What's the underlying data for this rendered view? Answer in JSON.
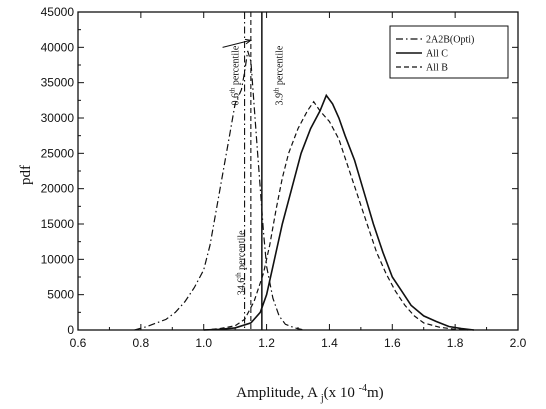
{
  "chart_data": {
    "type": "line",
    "title": "",
    "xlabel": "Amplitude, A",
    "xlabel_sub": "j",
    "xlabel_unit_pre": "(x 10",
    "xlabel_unit_exp": "-4",
    "xlabel_unit_post": "m)",
    "ylabel": "pdf",
    "xlim": [
      0.6,
      2.0
    ],
    "ylim": [
      0,
      45000
    ],
    "xticks": [
      "0.6",
      "0.8",
      "1.0",
      "1.2",
      "1.4",
      "1.6",
      "1.8",
      "2.0"
    ],
    "yticks": [
      "0",
      "5000",
      "10000",
      "15000",
      "20000",
      "25000",
      "30000",
      "35000",
      "40000",
      "45000"
    ],
    "grid": false,
    "legend_position": "top-right",
    "series": [
      {
        "name": "2A2B(Opti)",
        "dash": "dashdot",
        "points": [
          [
            0.78,
            0
          ],
          [
            0.82,
            500
          ],
          [
            0.85,
            1000
          ],
          [
            0.88,
            1500
          ],
          [
            0.91,
            2500
          ],
          [
            0.94,
            4000
          ],
          [
            0.97,
            6000
          ],
          [
            1.0,
            8500
          ],
          [
            1.02,
            12000
          ],
          [
            1.04,
            17000
          ],
          [
            1.06,
            22000
          ],
          [
            1.08,
            27000
          ],
          [
            1.1,
            32000
          ],
          [
            1.12,
            34000
          ],
          [
            1.13,
            36500
          ],
          [
            1.14,
            39500
          ],
          [
            1.15,
            38000
          ],
          [
            1.16,
            32000
          ],
          [
            1.17,
            26000
          ],
          [
            1.18,
            20000
          ],
          [
            1.19,
            14000
          ],
          [
            1.2,
            9000
          ],
          [
            1.22,
            4500
          ],
          [
            1.24,
            2000
          ],
          [
            1.26,
            800
          ],
          [
            1.29,
            300
          ],
          [
            1.32,
            0
          ]
        ]
      },
      {
        "name": "All C",
        "dash": "solid",
        "points": [
          [
            1.0,
            0
          ],
          [
            1.05,
            100
          ],
          [
            1.1,
            300
          ],
          [
            1.15,
            1000
          ],
          [
            1.18,
            2500
          ],
          [
            1.2,
            5000
          ],
          [
            1.22,
            9000
          ],
          [
            1.25,
            15000
          ],
          [
            1.28,
            20000
          ],
          [
            1.31,
            25000
          ],
          [
            1.34,
            28500
          ],
          [
            1.37,
            31000
          ],
          [
            1.39,
            33200
          ],
          [
            1.41,
            32000
          ],
          [
            1.43,
            30000
          ],
          [
            1.45,
            27500
          ],
          [
            1.48,
            24000
          ],
          [
            1.51,
            19500
          ],
          [
            1.54,
            15000
          ],
          [
            1.57,
            11000
          ],
          [
            1.6,
            7500
          ],
          [
            1.63,
            5500
          ],
          [
            1.66,
            3500
          ],
          [
            1.7,
            2000
          ],
          [
            1.74,
            1200
          ],
          [
            1.78,
            500
          ],
          [
            1.82,
            200
          ],
          [
            1.86,
            0
          ]
        ]
      },
      {
        "name": "All B",
        "dash": "dashed",
        "points": [
          [
            1.0,
            0
          ],
          [
            1.05,
            200
          ],
          [
            1.1,
            600
          ],
          [
            1.13,
            1500
          ],
          [
            1.16,
            4000
          ],
          [
            1.19,
            8000
          ],
          [
            1.21,
            12000
          ],
          [
            1.23,
            17000
          ],
          [
            1.25,
            21500
          ],
          [
            1.27,
            25000
          ],
          [
            1.3,
            28500
          ],
          [
            1.33,
            31000
          ],
          [
            1.35,
            32300
          ],
          [
            1.37,
            31000
          ],
          [
            1.4,
            29500
          ],
          [
            1.43,
            27000
          ],
          [
            1.46,
            23000
          ],
          [
            1.49,
            19000
          ],
          [
            1.52,
            15000
          ],
          [
            1.55,
            11000
          ],
          [
            1.58,
            8000
          ],
          [
            1.61,
            5500
          ],
          [
            1.64,
            3500
          ],
          [
            1.67,
            2000
          ],
          [
            1.7,
            1000
          ],
          [
            1.75,
            400
          ],
          [
            1.8,
            100
          ],
          [
            1.84,
            0
          ]
        ]
      }
    ],
    "vlines": [
      {
        "x": 1.13,
        "dash": "dashdot"
      },
      {
        "x": 1.15,
        "dash": "dashed"
      },
      {
        "x": 1.185,
        "dash": "solid"
      }
    ],
    "annotations": [
      {
        "label": "0.6",
        "sup": "th",
        "rest": " percentile",
        "x": 1.11,
        "y": 36000
      },
      {
        "label": "3.9",
        "sup": "th",
        "rest": " percentile",
        "x": 1.25,
        "y": 36000
      },
      {
        "label": "34.6",
        "sup": "th",
        "rest": " percentile",
        "x": 1.13,
        "y": 9500
      }
    ],
    "arrow": {
      "from": [
        1.06,
        40000
      ],
      "to": [
        1.15,
        41000
      ]
    }
  }
}
